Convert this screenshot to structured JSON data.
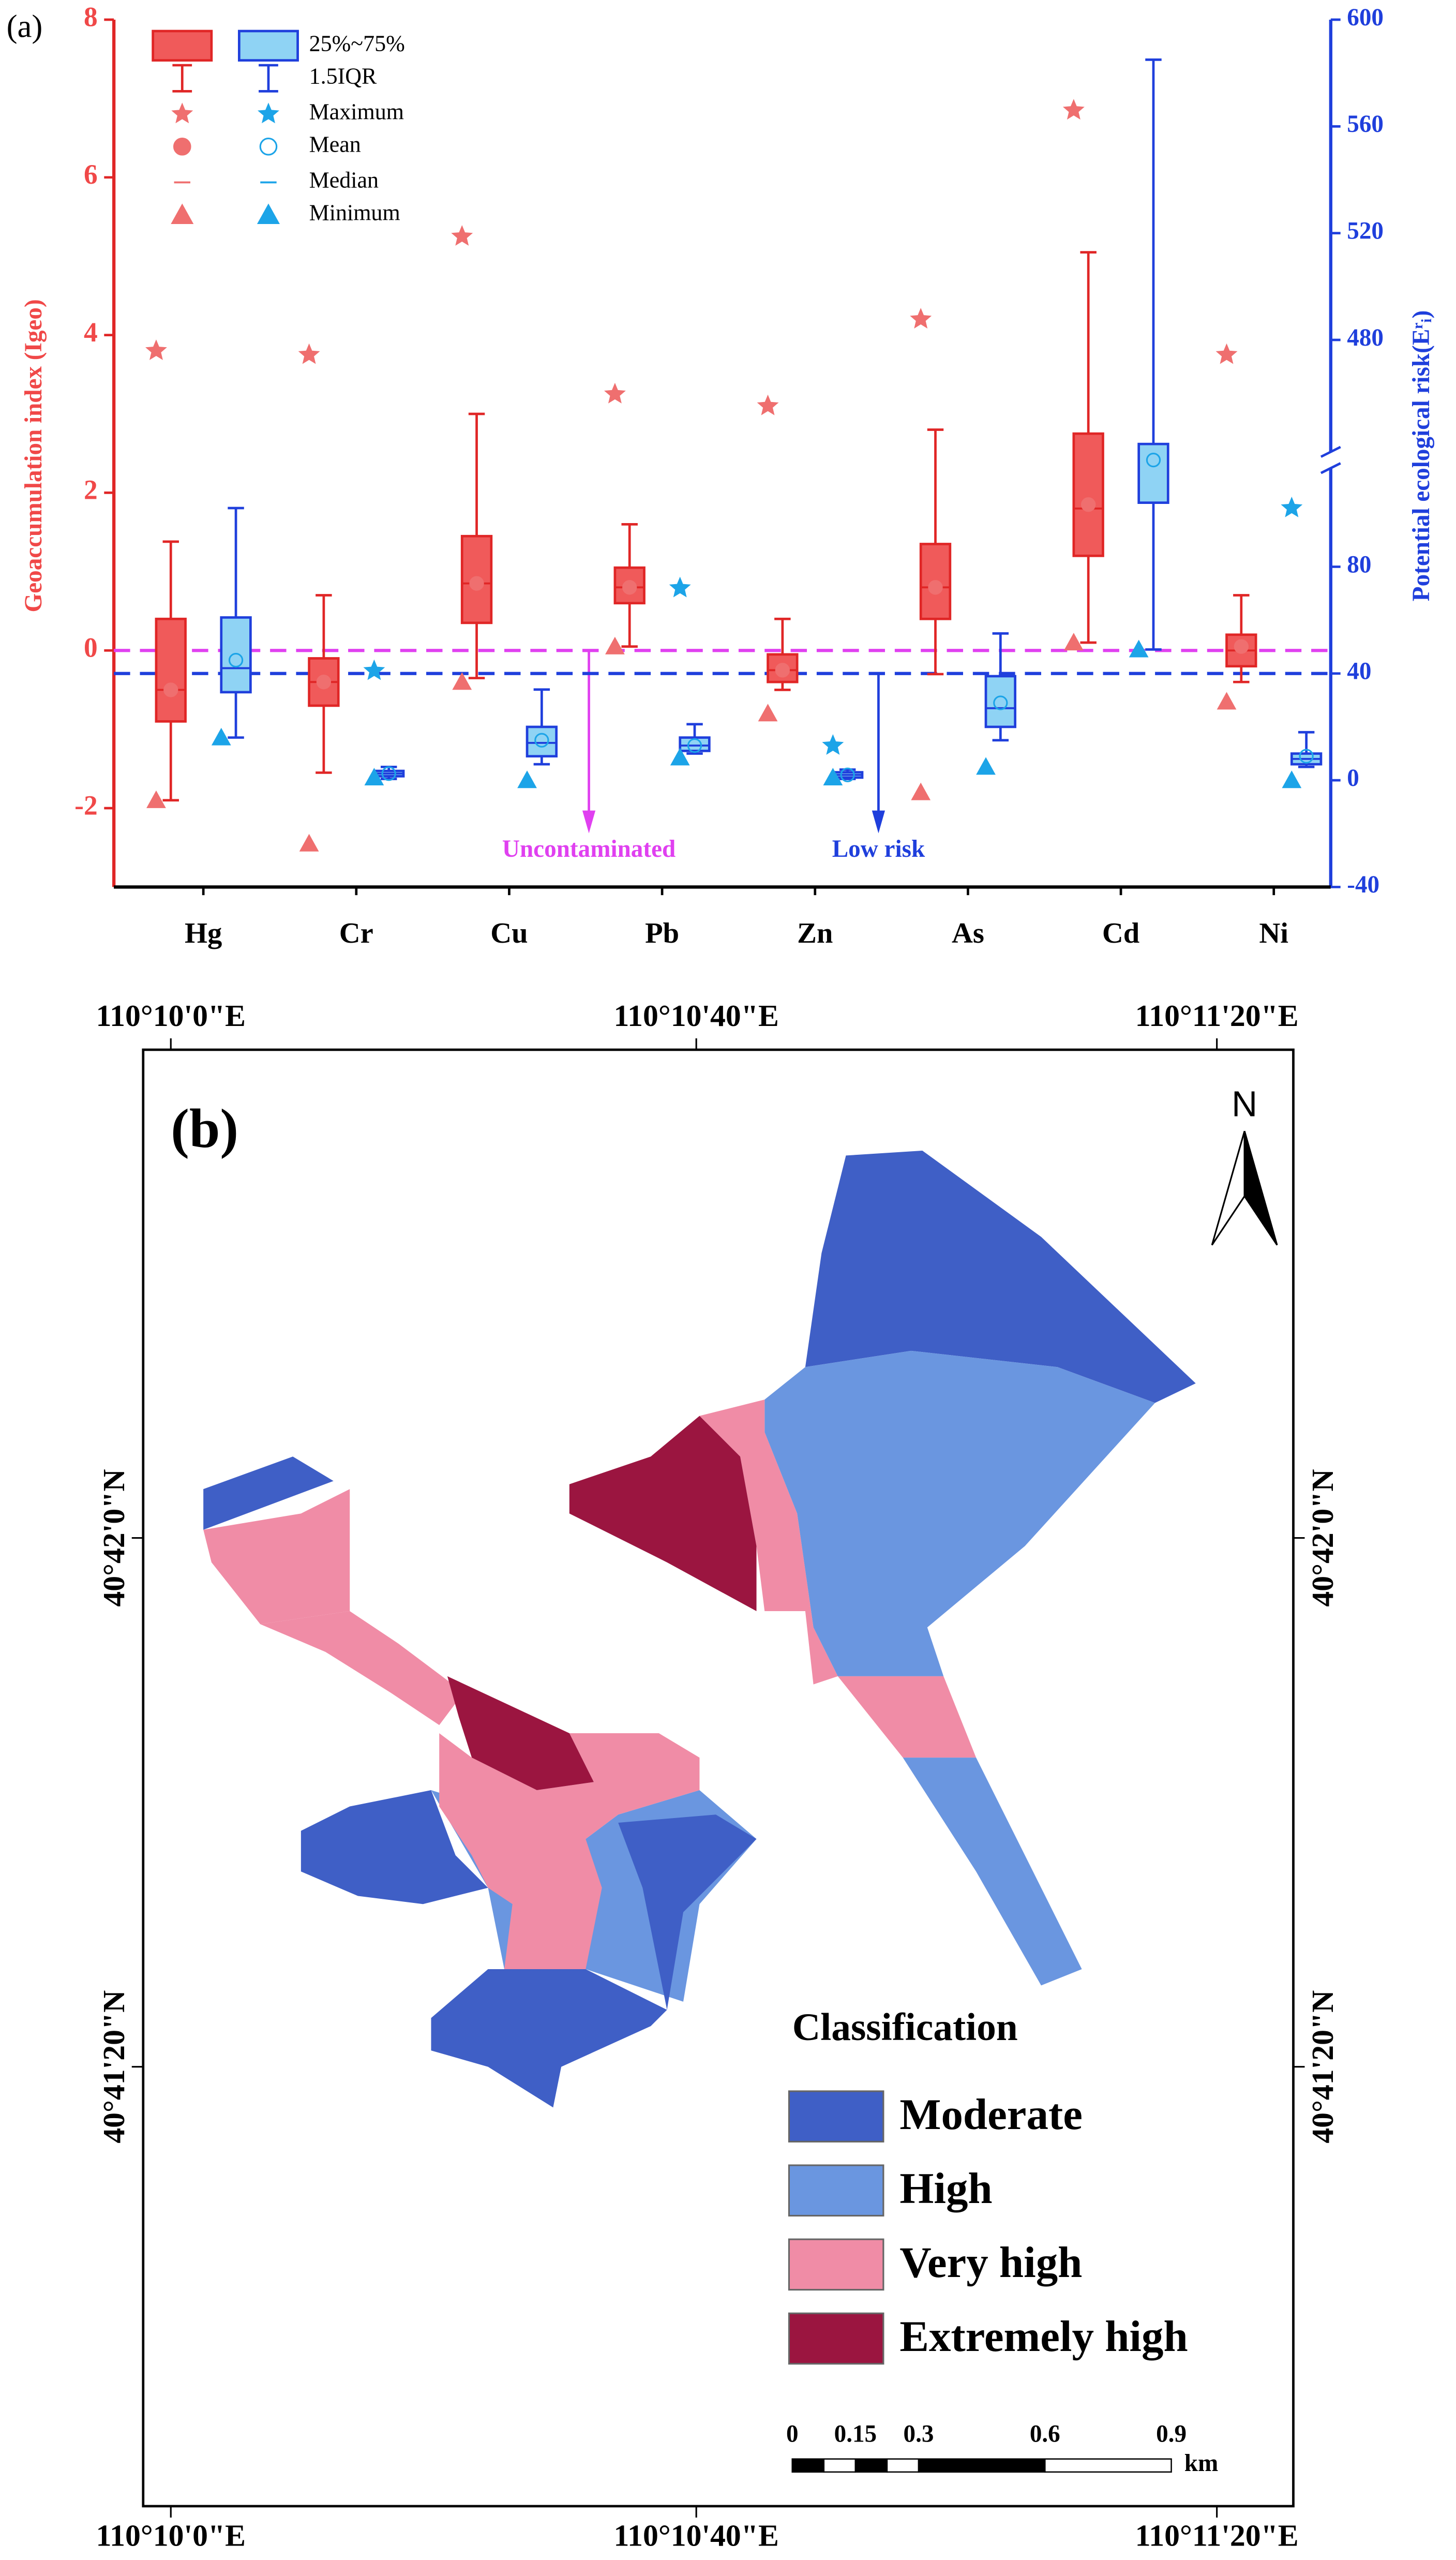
{
  "chart_data": {
    "type": "box",
    "panel_label": "(a)",
    "categories": [
      "Hg",
      "Cr",
      "Cu",
      "Pb",
      "Zn",
      "As",
      "Cd",
      "Ni"
    ],
    "ylabel": "Geoaccumulation index (Igeo)",
    "y2label": "Potential ecological risk(Eʳᵢ)",
    "ylim": [
      -3,
      8
    ],
    "yticks": [
      -2,
      0,
      2,
      4,
      6,
      8
    ],
    "y2lim": [
      -40,
      600
    ],
    "y2ticks": [
      -40,
      0,
      40,
      80,
      480,
      520,
      560,
      600
    ],
    "y2_break": [
      120,
      435
    ],
    "legend": [
      "25%~75%",
      "1.5IQR",
      "Maximum",
      "Mean",
      "Median",
      "Minimum"
    ],
    "series": [
      {
        "axis": "y",
        "color": "#f05a5a",
        "edge_color": "#e02626",
        "marker_color": "#ef6f6f",
        "mean_filled": true,
        "q1": [
          -0.9,
          -0.7,
          0.35,
          0.6,
          -0.4,
          0.4,
          1.2,
          -0.2
        ],
        "median": [
          -0.5,
          -0.4,
          0.85,
          0.8,
          -0.25,
          0.8,
          1.8,
          0
        ],
        "q3": [
          0.4,
          -0.1,
          1.45,
          1.05,
          -0.05,
          1.35,
          2.75,
          0.2
        ],
        "whisker_low": [
          -1.9,
          -1.55,
          -0.35,
          0.05,
          -0.5,
          -0.3,
          0.1,
          -0.4
        ],
        "whisker_high": [
          1.38,
          0.7,
          3.0,
          1.6,
          0.4,
          2.8,
          5.05,
          0.7
        ],
        "mean": [
          -0.5,
          -0.4,
          0.85,
          0.8,
          -0.25,
          0.8,
          1.85,
          0.05
        ],
        "max": [
          3.8,
          3.75,
          5.25,
          3.25,
          3.1,
          4.2,
          6.85,
          3.75
        ],
        "min": [
          -1.9,
          -2.45,
          -0.4,
          0.05,
          -0.8,
          -1.8,
          0.1,
          -0.65
        ]
      },
      {
        "axis": "y2",
        "color": "#8fd3f4",
        "edge_color": "#1f3fdc",
        "marker_color": "#1ca4e8",
        "mean_filled": false,
        "q1": [
          33,
          1.5,
          9,
          11,
          1,
          20,
          104,
          6
        ],
        "median": [
          42,
          2.5,
          14,
          13,
          2,
          27,
          104,
          8
        ],
        "q3": [
          61,
          3.5,
          20,
          16,
          3,
          39,
          441,
          10
        ],
        "whisker_low": [
          16,
          0.5,
          6,
          10,
          0.5,
          15,
          49,
          5
        ],
        "whisker_high": [
          102,
          5,
          34,
          21,
          4,
          55,
          585,
          18
        ],
        "mean": [
          45,
          2.5,
          15,
          13,
          2,
          29,
          160,
          9
        ],
        "max": [
          null,
          41,
          null,
          72,
          13,
          null,
          null,
          102
        ],
        "min": [
          16,
          1,
          0,
          8.5,
          1,
          5,
          49,
          0
        ]
      }
    ],
    "reference_lines": [
      {
        "axis": "y",
        "value": 0,
        "color": "#e040f0",
        "label": "Uncontaminated"
      },
      {
        "axis": "y2",
        "value": 40,
        "color": "#1f3fdc",
        "label": "Low risk"
      }
    ]
  },
  "map": {
    "panel_label": "(b)",
    "north": "N",
    "x_labels": [
      "110°10'0\"E",
      "110°10'40\"E",
      "110°11'20\"E"
    ],
    "y_labels": [
      "40°42'0\"N",
      "40°41'20\"N"
    ],
    "legend_title": "Classification",
    "classes": [
      {
        "label": "Moderate",
        "color": "#3f5fc6"
      },
      {
        "label": "High",
        "color": "#6a96e0"
      },
      {
        "label": "Very high",
        "color": "#f08ca6"
      },
      {
        "label": "Extremely high",
        "color": "#9b1540"
      }
    ],
    "scale_bar": {
      "ticks": [
        0,
        0.15,
        0.3,
        0.6,
        0.9
      ],
      "unit": "km"
    }
  }
}
